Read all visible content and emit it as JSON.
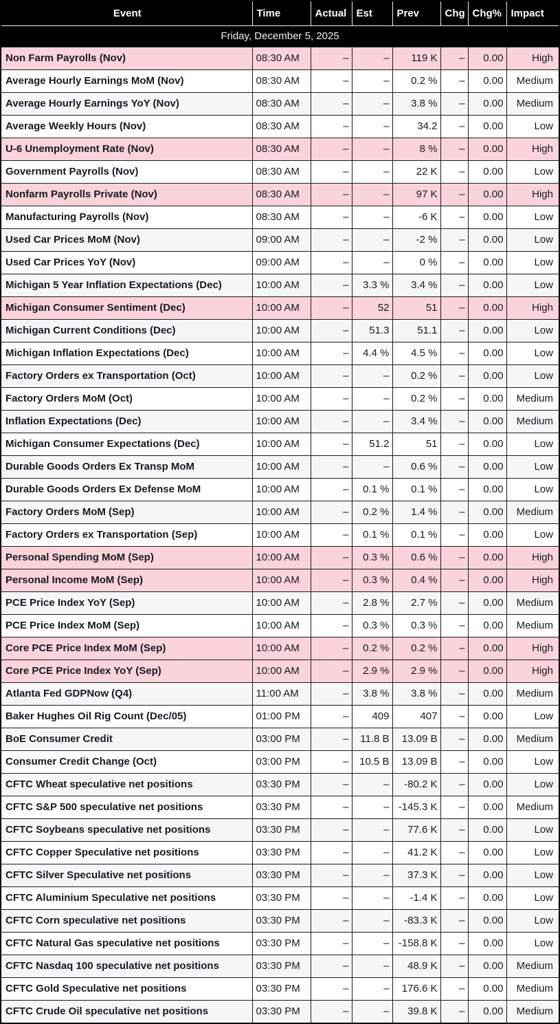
{
  "table": {
    "date_header": "Friday, December 5, 2025",
    "columns": [
      {
        "key": "event",
        "label": "Event"
      },
      {
        "key": "time",
        "label": "Time"
      },
      {
        "key": "actual",
        "label": "Actual"
      },
      {
        "key": "est",
        "label": "Est"
      },
      {
        "key": "prev",
        "label": "Prev"
      },
      {
        "key": "chg",
        "label": "Chg"
      },
      {
        "key": "chg_pct",
        "label": "Chg%"
      },
      {
        "key": "impact",
        "label": "Impact"
      }
    ],
    "colors": {
      "header_bg": "#000000",
      "header_text": "#ffffff",
      "high_impact_row_bg": "#fbd3da",
      "stripe_row_bg": "#f6f6f7",
      "row_bg": "#ffffff",
      "text": "#171a21",
      "border": "#1c1c1c"
    },
    "rows": [
      {
        "event": "Non Farm Payrolls (Nov)",
        "time": "08:30 AM",
        "actual": "–",
        "est": "–",
        "prev": "119 K",
        "chg": "–",
        "chg_pct": "0.00",
        "impact": "High"
      },
      {
        "event": "Average Hourly Earnings MoM (Nov)",
        "time": "08:30 AM",
        "actual": "–",
        "est": "–",
        "prev": "0.2 %",
        "chg": "–",
        "chg_pct": "0.00",
        "impact": "Medium"
      },
      {
        "event": "Average Hourly Earnings YoY (Nov)",
        "time": "08:30 AM",
        "actual": "–",
        "est": "–",
        "prev": "3.8 %",
        "chg": "–",
        "chg_pct": "0.00",
        "impact": "Medium"
      },
      {
        "event": "Average Weekly Hours (Nov)",
        "time": "08:30 AM",
        "actual": "–",
        "est": "–",
        "prev": "34.2",
        "chg": "–",
        "chg_pct": "0.00",
        "impact": "Low"
      },
      {
        "event": "U-6 Unemployment Rate (Nov)",
        "time": "08:30 AM",
        "actual": "–",
        "est": "–",
        "prev": "8 %",
        "chg": "–",
        "chg_pct": "0.00",
        "impact": "High"
      },
      {
        "event": "Government Payrolls (Nov)",
        "time": "08:30 AM",
        "actual": "–",
        "est": "–",
        "prev": "22 K",
        "chg": "–",
        "chg_pct": "0.00",
        "impact": "Low"
      },
      {
        "event": "Nonfarm Payrolls Private (Nov)",
        "time": "08:30 AM",
        "actual": "–",
        "est": "–",
        "prev": "97 K",
        "chg": "–",
        "chg_pct": "0.00",
        "impact": "High"
      },
      {
        "event": "Manufacturing Payrolls (Nov)",
        "time": "08:30 AM",
        "actual": "–",
        "est": "–",
        "prev": "-6 K",
        "chg": "–",
        "chg_pct": "0.00",
        "impact": "Low"
      },
      {
        "event": "Used Car Prices MoM (Nov)",
        "time": "09:00 AM",
        "actual": "–",
        "est": "–",
        "prev": "-2 %",
        "chg": "–",
        "chg_pct": "0.00",
        "impact": "Low"
      },
      {
        "event": "Used Car Prices YoY (Nov)",
        "time": "09:00 AM",
        "actual": "–",
        "est": "–",
        "prev": "0 %",
        "chg": "–",
        "chg_pct": "0.00",
        "impact": "Low"
      },
      {
        "event": "Michigan 5 Year Inflation Expectations (Dec)",
        "time": "10:00 AM",
        "actual": "–",
        "est": "3.3 %",
        "prev": "3.4 %",
        "chg": "–",
        "chg_pct": "0.00",
        "impact": "Low"
      },
      {
        "event": "Michigan Consumer Sentiment (Dec)",
        "time": "10:00 AM",
        "actual": "–",
        "est": "52",
        "prev": "51",
        "chg": "–",
        "chg_pct": "0.00",
        "impact": "High"
      },
      {
        "event": "Michigan Current Conditions (Dec)",
        "time": "10:00 AM",
        "actual": "–",
        "est": "51.3",
        "prev": "51.1",
        "chg": "–",
        "chg_pct": "0.00",
        "impact": "Low"
      },
      {
        "event": "Michigan Inflation Expectations (Dec)",
        "time": "10:00 AM",
        "actual": "–",
        "est": "4.4 %",
        "prev": "4.5 %",
        "chg": "–",
        "chg_pct": "0.00",
        "impact": "Low"
      },
      {
        "event": "Factory Orders ex Transportation (Oct)",
        "time": "10:00 AM",
        "actual": "–",
        "est": "–",
        "prev": "0.2 %",
        "chg": "–",
        "chg_pct": "0.00",
        "impact": "Low"
      },
      {
        "event": "Factory Orders MoM (Oct)",
        "time": "10:00 AM",
        "actual": "–",
        "est": "–",
        "prev": "0.2 %",
        "chg": "–",
        "chg_pct": "0.00",
        "impact": "Medium"
      },
      {
        "event": "Inflation Expectations (Dec)",
        "time": "10:00 AM",
        "actual": "–",
        "est": "–",
        "prev": "3.4 %",
        "chg": "–",
        "chg_pct": "0.00",
        "impact": "Medium"
      },
      {
        "event": "Michigan Consumer Expectations (Dec)",
        "time": "10:00 AM",
        "actual": "–",
        "est": "51.2",
        "prev": "51",
        "chg": "–",
        "chg_pct": "0.00",
        "impact": "Low"
      },
      {
        "event": "Durable Goods Orders Ex Transp MoM",
        "time": "10:00 AM",
        "actual": "–",
        "est": "–",
        "prev": "0.6 %",
        "chg": "–",
        "chg_pct": "0.00",
        "impact": "Low"
      },
      {
        "event": "Durable Goods Orders Ex Defense MoM",
        "time": "10:00 AM",
        "actual": "–",
        "est": "0.1 %",
        "prev": "0.1 %",
        "chg": "–",
        "chg_pct": "0.00",
        "impact": "Low"
      },
      {
        "event": "Factory Orders MoM (Sep)",
        "time": "10:00 AM",
        "actual": "–",
        "est": "0.2 %",
        "prev": "1.4 %",
        "chg": "–",
        "chg_pct": "0.00",
        "impact": "Medium"
      },
      {
        "event": "Factory Orders ex Transportation (Sep)",
        "time": "10:00 AM",
        "actual": "–",
        "est": "0.1 %",
        "prev": "0.1 %",
        "chg": "–",
        "chg_pct": "0.00",
        "impact": "Low"
      },
      {
        "event": "Personal Spending MoM (Sep)",
        "time": "10:00 AM",
        "actual": "–",
        "est": "0.3 %",
        "prev": "0.6 %",
        "chg": "–",
        "chg_pct": "0.00",
        "impact": "High"
      },
      {
        "event": "Personal Income MoM (Sep)",
        "time": "10:00 AM",
        "actual": "–",
        "est": "0.3 %",
        "prev": "0.4 %",
        "chg": "–",
        "chg_pct": "0.00",
        "impact": "High"
      },
      {
        "event": "PCE Price Index YoY (Sep)",
        "time": "10:00 AM",
        "actual": "–",
        "est": "2.8 %",
        "prev": "2.7 %",
        "chg": "–",
        "chg_pct": "0.00",
        "impact": "Medium"
      },
      {
        "event": "PCE Price Index MoM (Sep)",
        "time": "10:00 AM",
        "actual": "–",
        "est": "0.3 %",
        "prev": "0.3 %",
        "chg": "–",
        "chg_pct": "0.00",
        "impact": "Medium"
      },
      {
        "event": "Core PCE Price Index MoM (Sep)",
        "time": "10:00 AM",
        "actual": "–",
        "est": "0.2 %",
        "prev": "0.2 %",
        "chg": "–",
        "chg_pct": "0.00",
        "impact": "High"
      },
      {
        "event": "Core PCE Price Index YoY (Sep)",
        "time": "10:00 AM",
        "actual": "–",
        "est": "2.9 %",
        "prev": "2.9 %",
        "chg": "–",
        "chg_pct": "0.00",
        "impact": "High"
      },
      {
        "event": "Atlanta Fed GDPNow (Q4)",
        "time": "11:00 AM",
        "actual": "–",
        "est": "3.8 %",
        "prev": "3.8 %",
        "chg": "–",
        "chg_pct": "0.00",
        "impact": "Medium"
      },
      {
        "event": "Baker Hughes Oil Rig Count (Dec/05)",
        "time": "01:00 PM",
        "actual": "–",
        "est": "409",
        "prev": "407",
        "chg": "–",
        "chg_pct": "0.00",
        "impact": "Low"
      },
      {
        "event": "BoE Consumer Credit",
        "time": "03:00 PM",
        "actual": "–",
        "est": "11.8 B",
        "prev": "13.09 B",
        "chg": "–",
        "chg_pct": "0.00",
        "impact": "Medium"
      },
      {
        "event": "Consumer Credit Change (Oct)",
        "time": "03:00 PM",
        "actual": "–",
        "est": "10.5 B",
        "prev": "13.09 B",
        "chg": "–",
        "chg_pct": "0.00",
        "impact": "Low"
      },
      {
        "event": "CFTC Wheat speculative net positions",
        "time": "03:30 PM",
        "actual": "–",
        "est": "–",
        "prev": "-80.2 K",
        "chg": "–",
        "chg_pct": "0.00",
        "impact": "Low"
      },
      {
        "event": "CFTC S&P 500 speculative net positions",
        "time": "03:30 PM",
        "actual": "–",
        "est": "–",
        "prev": "-145.3 K",
        "chg": "–",
        "chg_pct": "0.00",
        "impact": "Medium"
      },
      {
        "event": "CFTC Soybeans speculative net positions",
        "time": "03:30 PM",
        "actual": "–",
        "est": "–",
        "prev": "77.6 K",
        "chg": "–",
        "chg_pct": "0.00",
        "impact": "Low"
      },
      {
        "event": "CFTC Copper Speculative net positions",
        "time": "03:30 PM",
        "actual": "–",
        "est": "–",
        "prev": "41.2 K",
        "chg": "–",
        "chg_pct": "0.00",
        "impact": "Low"
      },
      {
        "event": "CFTC Silver Speculative net positions",
        "time": "03:30 PM",
        "actual": "–",
        "est": "–",
        "prev": "37.3 K",
        "chg": "–",
        "chg_pct": "0.00",
        "impact": "Low"
      },
      {
        "event": "CFTC Aluminium Speculative net positions",
        "time": "03:30 PM",
        "actual": "–",
        "est": "–",
        "prev": "-1.4 K",
        "chg": "–",
        "chg_pct": "0.00",
        "impact": "Low"
      },
      {
        "event": "CFTC Corn speculative net positions",
        "time": "03:30 PM",
        "actual": "–",
        "est": "–",
        "prev": "-83.3 K",
        "chg": "–",
        "chg_pct": "0.00",
        "impact": "Low"
      },
      {
        "event": "CFTC Natural Gas speculative net positions",
        "time": "03:30 PM",
        "actual": "–",
        "est": "–",
        "prev": "-158.8 K",
        "chg": "–",
        "chg_pct": "0.00",
        "impact": "Low"
      },
      {
        "event": "CFTC Nasdaq 100 speculative net positions",
        "time": "03:30 PM",
        "actual": "–",
        "est": "–",
        "prev": "48.9 K",
        "chg": "–",
        "chg_pct": "0.00",
        "impact": "Medium"
      },
      {
        "event": "CFTC Gold Speculative net positions",
        "time": "03:30 PM",
        "actual": "–",
        "est": "–",
        "prev": "176.6 K",
        "chg": "–",
        "chg_pct": "0.00",
        "impact": "Medium"
      },
      {
        "event": "CFTC Crude Oil speculative net positions",
        "time": "03:30 PM",
        "actual": "–",
        "est": "–",
        "prev": "39.8 K",
        "chg": "–",
        "chg_pct": "0.00",
        "impact": "Medium"
      }
    ]
  }
}
